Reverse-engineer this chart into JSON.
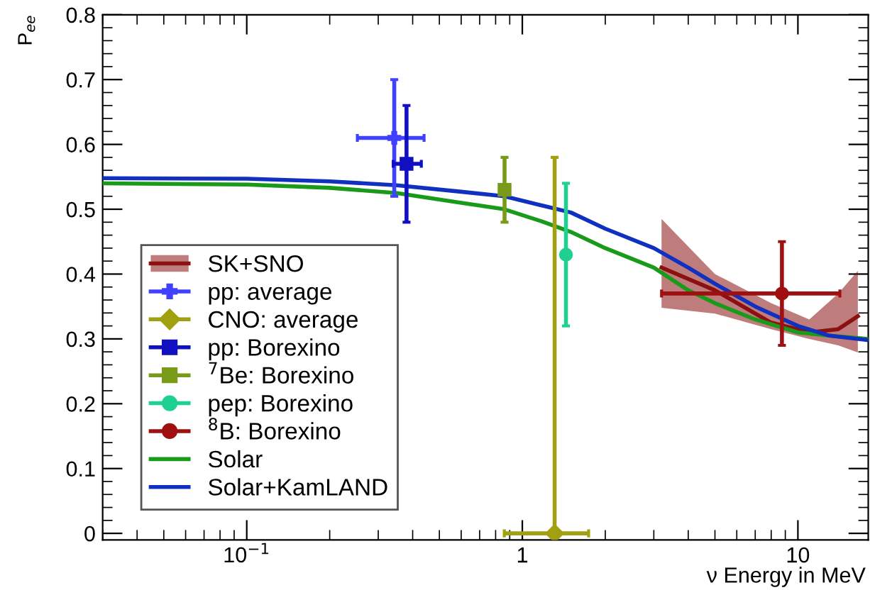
{
  "chart_data": {
    "type": "scatter",
    "ylabel": "P$_{ee}$",
    "xlabel": "ν Energy in MeV",
    "log": "x",
    "xlim": [
      0.03,
      18
    ],
    "xticks": [
      {
        "value": 0.1,
        "label": "10$^{−1}$"
      },
      1,
      10
    ],
    "ylim": [
      -0.01,
      0.8
    ],
    "yticks": [
      0,
      0.1,
      0.2,
      0.3,
      0.4,
      0.5,
      0.6,
      0.7,
      0.8
    ],
    "grid": false,
    "legend": "bottom left",
    "series": [
      {
        "name": "SK+SNO",
        "type": "line",
        "color": "#8b1010",
        "x": [
          3.2,
          5,
          8,
          11,
          14,
          16.5
        ],
        "values": [
          0.41,
          0.375,
          0.325,
          0.31,
          0.315,
          0.335
        ],
        "lower": [
          0.348,
          0.339,
          0.315,
          0.3,
          0.29,
          0.279
        ],
        "upper": [
          0.485,
          0.4,
          0.355,
          0.33,
          0.37,
          0.405
        ]
      },
      {
        "name": "pp: average",
        "color": "#4040ff",
        "marker": "cross",
        "x": [
          0.343
        ],
        "values": [
          0.61
        ],
        "errors": [
          [
            0.52,
            0.7
          ]
        ],
        "xerrors": [
          [
            0.252,
            0.44
          ]
        ]
      },
      {
        "name": "CNO: average",
        "color": "#a0a010",
        "marker": "diamond",
        "x": [
          1.31
        ],
        "values": [
          0.0
        ],
        "errors": [
          [
            0.0,
            0.58
          ]
        ],
        "xerrors": [
          [
            0.86,
            1.74
          ]
        ]
      },
      {
        "name": "pp: Borexino",
        "color": "#1010c0",
        "marker": "square",
        "x": [
          0.38
        ],
        "values": [
          0.57
        ],
        "errors": [
          [
            0.48,
            0.66
          ]
        ],
        "xerrors": [
          [
            0.34,
            0.43
          ]
        ]
      },
      {
        "name": "$^{7}$Be: Borexino",
        "color": "#7a9a1a",
        "marker": "square",
        "x": [
          0.862
        ],
        "values": [
          0.53
        ],
        "errors": [
          [
            0.48,
            0.58
          ]
        ]
      },
      {
        "name": "pep: Borexino",
        "color": "#20d090",
        "marker": "circle",
        "x": [
          1.44
        ],
        "values": [
          0.43
        ],
        "errors": [
          [
            0.32,
            0.54
          ]
        ]
      },
      {
        "name": "$^{8}$B: Borexino",
        "color": "#a01010",
        "marker": "circle",
        "x": [
          8.75
        ],
        "values": [
          0.37
        ],
        "errors": [
          [
            0.29,
            0.45
          ]
        ],
        "xerrors": [
          [
            3.2,
            14.2
          ]
        ]
      },
      {
        "name": "Solar",
        "type": "line",
        "color": "#1a9a1a",
        "x": [
          0.03,
          0.1,
          0.2,
          0.35,
          0.6,
          0.86,
          1.2,
          1.5,
          2,
          3,
          4,
          5,
          7,
          10,
          13,
          18
        ],
        "values": [
          0.54,
          0.538,
          0.533,
          0.525,
          0.51,
          0.5,
          0.48,
          0.465,
          0.44,
          0.41,
          0.375,
          0.355,
          0.33,
          0.31,
          0.305,
          0.3
        ]
      },
      {
        "name": "Solar+KamLAND",
        "type": "line",
        "color": "#1030c0",
        "x": [
          0.03,
          0.1,
          0.2,
          0.35,
          0.6,
          0.86,
          1.2,
          1.5,
          2,
          3,
          4,
          5,
          7,
          10,
          13,
          18
        ],
        "values": [
          0.548,
          0.547,
          0.543,
          0.537,
          0.527,
          0.52,
          0.505,
          0.495,
          0.47,
          0.44,
          0.41,
          0.385,
          0.35,
          0.32,
          0.305,
          0.298
        ]
      }
    ]
  }
}
